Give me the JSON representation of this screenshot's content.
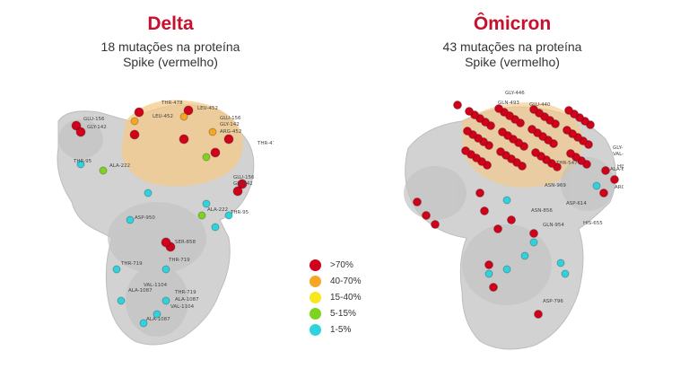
{
  "delta": {
    "title": "Delta",
    "subtitle_line1": "18 mutações na proteína",
    "subtitle_line2": "Spike (vermelho)",
    "labels": [
      "GLU-156",
      "GLY-142",
      "THR-478",
      "LEU-452",
      "LEU-452",
      "GLU-156",
      "GLY-142",
      "ARG-452",
      "THR-478",
      "THR-95",
      "ALA-222",
      "GLU-156",
      "GLY-142",
      "ALA-222",
      "THR-95",
      "ASP-950",
      "SER-858",
      "THR-719",
      "THR-719",
      "VAL-1104",
      "ALA-1087",
      "THR-719",
      "ALA-1087",
      "VAL-1104",
      "ALA-1087"
    ]
  },
  "omicron": {
    "title": "Ômicron",
    "subtitle_line1": "43 mutações na proteína",
    "subtitle_line2": "Spike (vermelho)",
    "labels": [
      "GLY-446",
      "GLN-493",
      "GLU-440",
      "GLY-142",
      "VAL-143",
      "VAL-70",
      "HIS-69",
      "THR-547",
      "ALA-67",
      "ARG-214",
      "ASN-969",
      "ASP-614",
      "ASN-856",
      "GLN-954",
      "HIS-655",
      "ASP-796"
    ]
  },
  "legend": [
    {
      "label": ">70%",
      "color": "#d0021b"
    },
    {
      "label": "40-70%",
      "color": "#f5a623"
    },
    {
      "label": "15-40%",
      "color": "#f8e71c"
    },
    {
      "label": "5-15%",
      "color": "#7ed321"
    },
    {
      "label": "1-5%",
      "color": "#2fd3de"
    }
  ]
}
